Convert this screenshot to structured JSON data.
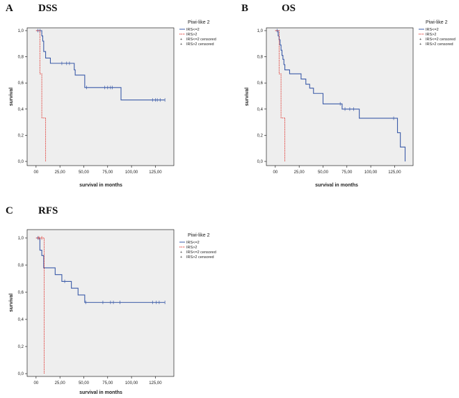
{
  "legend_title": "Piwi-like 2",
  "legend_entries": [
    "IRS<=2",
    "IRS>2",
    "IRS<=2 censored",
    "IRS>2 censored"
  ],
  "colors": {
    "low": "#3a5aa8",
    "high": "#e0302a",
    "plot_bg": "#eeeeee",
    "frame": "#000000"
  },
  "chart_data": [
    {
      "type": "line",
      "letter": "A",
      "title": "DSS",
      "xlabel": "survival in months",
      "ylabel": "survival",
      "xlim": [
        -5,
        140
      ],
      "ylim": [
        0,
        1
      ],
      "xticks": [
        "00",
        "25,00",
        "50,00",
        "75,00",
        "100,00",
        "125,00"
      ],
      "xtick_values": [
        0,
        25,
        50,
        75,
        100,
        125
      ],
      "yticks": [
        "0,0",
        "0,2",
        "0,4",
        "0,6",
        "0,8",
        "1,0"
      ],
      "ytick_values": [
        0,
        0.2,
        0.4,
        0.6,
        0.8,
        1.0
      ],
      "series": [
        {
          "name": "IRS<=2",
          "steps": [
            [
              0,
              1.0
            ],
            [
              6,
              0.96
            ],
            [
              7,
              0.92
            ],
            [
              8,
              0.84
            ],
            [
              10,
              0.79
            ],
            [
              15,
              0.75
            ],
            [
              40,
              0.7
            ],
            [
              41,
              0.66
            ],
            [
              51,
              0.565
            ],
            [
              89,
              0.47
            ],
            [
              135,
              0.47
            ]
          ],
          "censored": [
            [
              2,
              1.0
            ],
            [
              4,
              1.0
            ],
            [
              27,
              0.75
            ],
            [
              32,
              0.75
            ],
            [
              35,
              0.75
            ],
            [
              53,
              0.565
            ],
            [
              72,
              0.565
            ],
            [
              75,
              0.565
            ],
            [
              78,
              0.565
            ],
            [
              80,
              0.565
            ],
            [
              122,
              0.47
            ],
            [
              125,
              0.47
            ],
            [
              127,
              0.47
            ],
            [
              130,
              0.47
            ],
            [
              135,
              0.47
            ]
          ]
        },
        {
          "name": "IRS>2",
          "steps": [
            [
              0,
              1.0
            ],
            [
              4,
              0.67
            ],
            [
              6,
              0.333
            ],
            [
              10,
              0.0
            ]
          ],
          "censored": []
        }
      ]
    },
    {
      "type": "line",
      "letter": "B",
      "title": "OS",
      "xlabel": "survival in months",
      "ylabel": "survival",
      "xlim": [
        -5,
        140
      ],
      "ylim": [
        0,
        1
      ],
      "xticks": [
        "00",
        "25,00",
        "50,00",
        "75,00",
        "100,00",
        "125,00"
      ],
      "xtick_values": [
        0,
        25,
        50,
        75,
        100,
        125
      ],
      "yticks": [
        "0,0",
        "0,2",
        "0,4",
        "0,6",
        "0,8",
        "1,0"
      ],
      "ytick_values": [
        0,
        0.2,
        0.4,
        0.6,
        0.8,
        1.0
      ],
      "series": [
        {
          "name": "IRS<=2",
          "steps": [
            [
              0,
              1.0
            ],
            [
              3,
              0.96
            ],
            [
              4,
              0.93
            ],
            [
              5,
              0.89
            ],
            [
              6,
              0.85
            ],
            [
              7,
              0.81
            ],
            [
              8,
              0.78
            ],
            [
              9,
              0.74
            ],
            [
              10,
              0.7
            ],
            [
              15,
              0.67
            ],
            [
              27,
              0.63
            ],
            [
              32,
              0.59
            ],
            [
              36,
              0.56
            ],
            [
              40,
              0.52
            ],
            [
              50,
              0.44
            ],
            [
              70,
              0.4
            ],
            [
              88,
              0.33
            ],
            [
              128,
              0.22
            ],
            [
              131,
              0.11
            ],
            [
              136,
              0.0
            ]
          ],
          "censored": [
            [
              2,
              1.0
            ],
            [
              68,
              0.44
            ],
            [
              73,
              0.4
            ],
            [
              78,
              0.4
            ],
            [
              82,
              0.4
            ],
            [
              124,
              0.33
            ]
          ]
        },
        {
          "name": "IRS>2",
          "steps": [
            [
              0,
              1.0
            ],
            [
              4,
              0.67
            ],
            [
              6,
              0.333
            ],
            [
              10,
              0.0
            ]
          ],
          "censored": []
        }
      ]
    },
    {
      "type": "line",
      "letter": "C",
      "title": "RFS",
      "xlabel": "survival in months",
      "ylabel": "survival",
      "xlim": [
        -5,
        140
      ],
      "ylim": [
        0,
        1
      ],
      "xticks": [
        "00",
        "25,00",
        "50,00",
        "75,00",
        "100,00",
        "125,00"
      ],
      "xtick_values": [
        0,
        25,
        50,
        75,
        100,
        125
      ],
      "yticks": [
        "0,0",
        "0,2",
        "0,4",
        "0,6",
        "0,8",
        "1,0"
      ],
      "ytick_values": [
        0,
        0.2,
        0.4,
        0.6,
        0.8,
        1.0
      ],
      "series": [
        {
          "name": "IRS<=2",
          "steps": [
            [
              0,
              1.0
            ],
            [
              4,
              0.91
            ],
            [
              6,
              0.87
            ],
            [
              8,
              0.78
            ],
            [
              20,
              0.73
            ],
            [
              27,
              0.68
            ],
            [
              37,
              0.63
            ],
            [
              44,
              0.58
            ],
            [
              51,
              0.525
            ],
            [
              135,
              0.525
            ]
          ],
          "censored": [
            [
              2,
              1.0
            ],
            [
              30,
              0.68
            ],
            [
              52,
              0.525
            ],
            [
              70,
              0.525
            ],
            [
              78,
              0.525
            ],
            [
              81,
              0.525
            ],
            [
              88,
              0.525
            ],
            [
              122,
              0.525
            ],
            [
              126,
              0.525
            ],
            [
              129,
              0.525
            ],
            [
              135,
              0.525
            ]
          ]
        },
        {
          "name": "IRS>2",
          "steps": [
            [
              0,
              1.0
            ],
            [
              8,
              1.0
            ],
            [
              8.5,
              0.0
            ]
          ],
          "censored": [
            [
              3,
              1.0
            ],
            [
              6,
              1.0
            ]
          ]
        }
      ]
    }
  ]
}
